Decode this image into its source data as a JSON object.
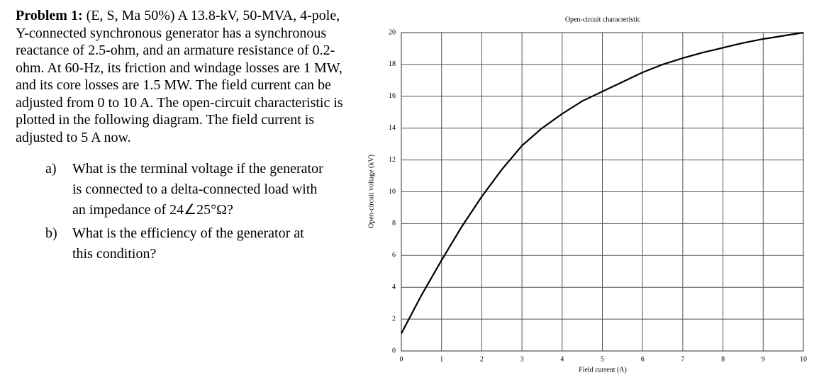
{
  "problem": {
    "heading": "Problem 1:",
    "text": "(E, S, Ma 50%) A 13.8-kV, 50-MVA, 4-pole, Y-connected synchronous generator has a synchronous reactance of 2.5-ohm, and an armature resistance of 0.2-ohm. At 60-Hz, its friction and windage losses are 1 MW, and its core losses are 1.5 MW. The field current can be adjusted from 0 to 10 A. The open-circuit characteristic is plotted in the following diagram. The field current is adjusted to 5 A now.",
    "questions": [
      {
        "label": "a)",
        "text": "What is the terminal voltage if the generator is connected to a delta-connected load with an impedance of 24∠25°Ω?"
      },
      {
        "label": "b)",
        "text": "What is the efficiency of the generator at this condition?"
      }
    ]
  },
  "chart_data": {
    "type": "line",
    "title": "Open-circuit characteristic",
    "x_label": "Field current (A)",
    "y_label": "Open-circuit voltage (kV)",
    "x": [
      0,
      0.5,
      1,
      1.5,
      2,
      2.5,
      3,
      3.5,
      4,
      4.5,
      5,
      5.5,
      6,
      6.5,
      7,
      7.5,
      8,
      8.5,
      9,
      9.5,
      10
    ],
    "series": [
      {
        "name": "Open-circuit voltage",
        "color": "#000000",
        "values": [
          1.1,
          3.5,
          5.7,
          7.8,
          9.7,
          11.4,
          12.9,
          14.0,
          14.9,
          15.7,
          16.3,
          16.9,
          17.5,
          18.0,
          18.4,
          18.75,
          19.05,
          19.35,
          19.6,
          19.8,
          20.0
        ]
      }
    ],
    "xlim": [
      0,
      10
    ],
    "xticks": [
      0,
      1,
      2,
      3,
      4,
      5,
      6,
      7,
      8,
      9,
      10
    ],
    "ylim": [
      0,
      20
    ],
    "yticks": [
      0,
      2,
      4,
      6,
      8,
      10,
      12,
      14,
      16,
      18,
      20
    ],
    "grid": true
  }
}
